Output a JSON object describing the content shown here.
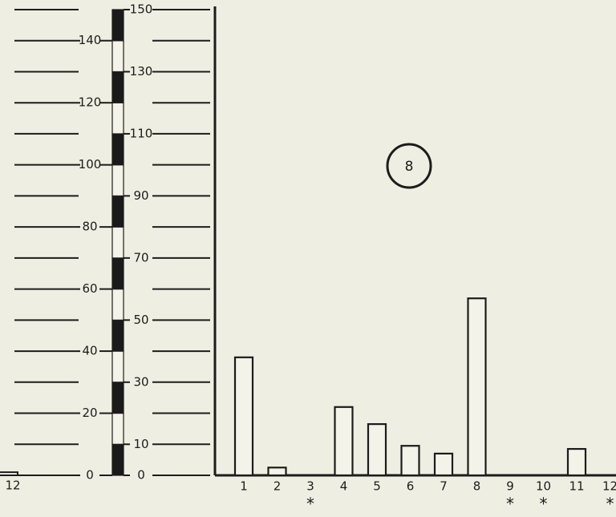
{
  "chart_data": {
    "type": "bar",
    "title": "",
    "badge": "8",
    "xlabel": "",
    "ylabel": "",
    "ylim": [
      0,
      150
    ],
    "left_scale_ticks": [
      "0",
      "20",
      "40",
      "60",
      "80",
      "100",
      "120",
      "140"
    ],
    "right_scale_ticks": [
      "0",
      "10",
      "30",
      "50",
      "70",
      "90",
      "110",
      "130",
      "150"
    ],
    "categories": [
      "1",
      "2",
      "3",
      "4",
      "5",
      "6",
      "7",
      "8",
      "9",
      "10",
      "11",
      "12"
    ],
    "asterisk_categories": [
      "3",
      "9",
      "10",
      "12"
    ],
    "values": [
      38,
      2.5,
      0,
      22,
      16.5,
      9.5,
      7,
      57,
      0,
      0,
      8.5,
      0
    ],
    "previous_panel_last_label": "12",
    "previous_panel_last_value": 1,
    "grid": false,
    "colors": {
      "ink": "#1c1c1c",
      "background": "#efeee2",
      "bar_fill": "#f4f3ea",
      "scale_dark": "#1a1a1a",
      "scale_light": "#f4f3ea"
    }
  }
}
